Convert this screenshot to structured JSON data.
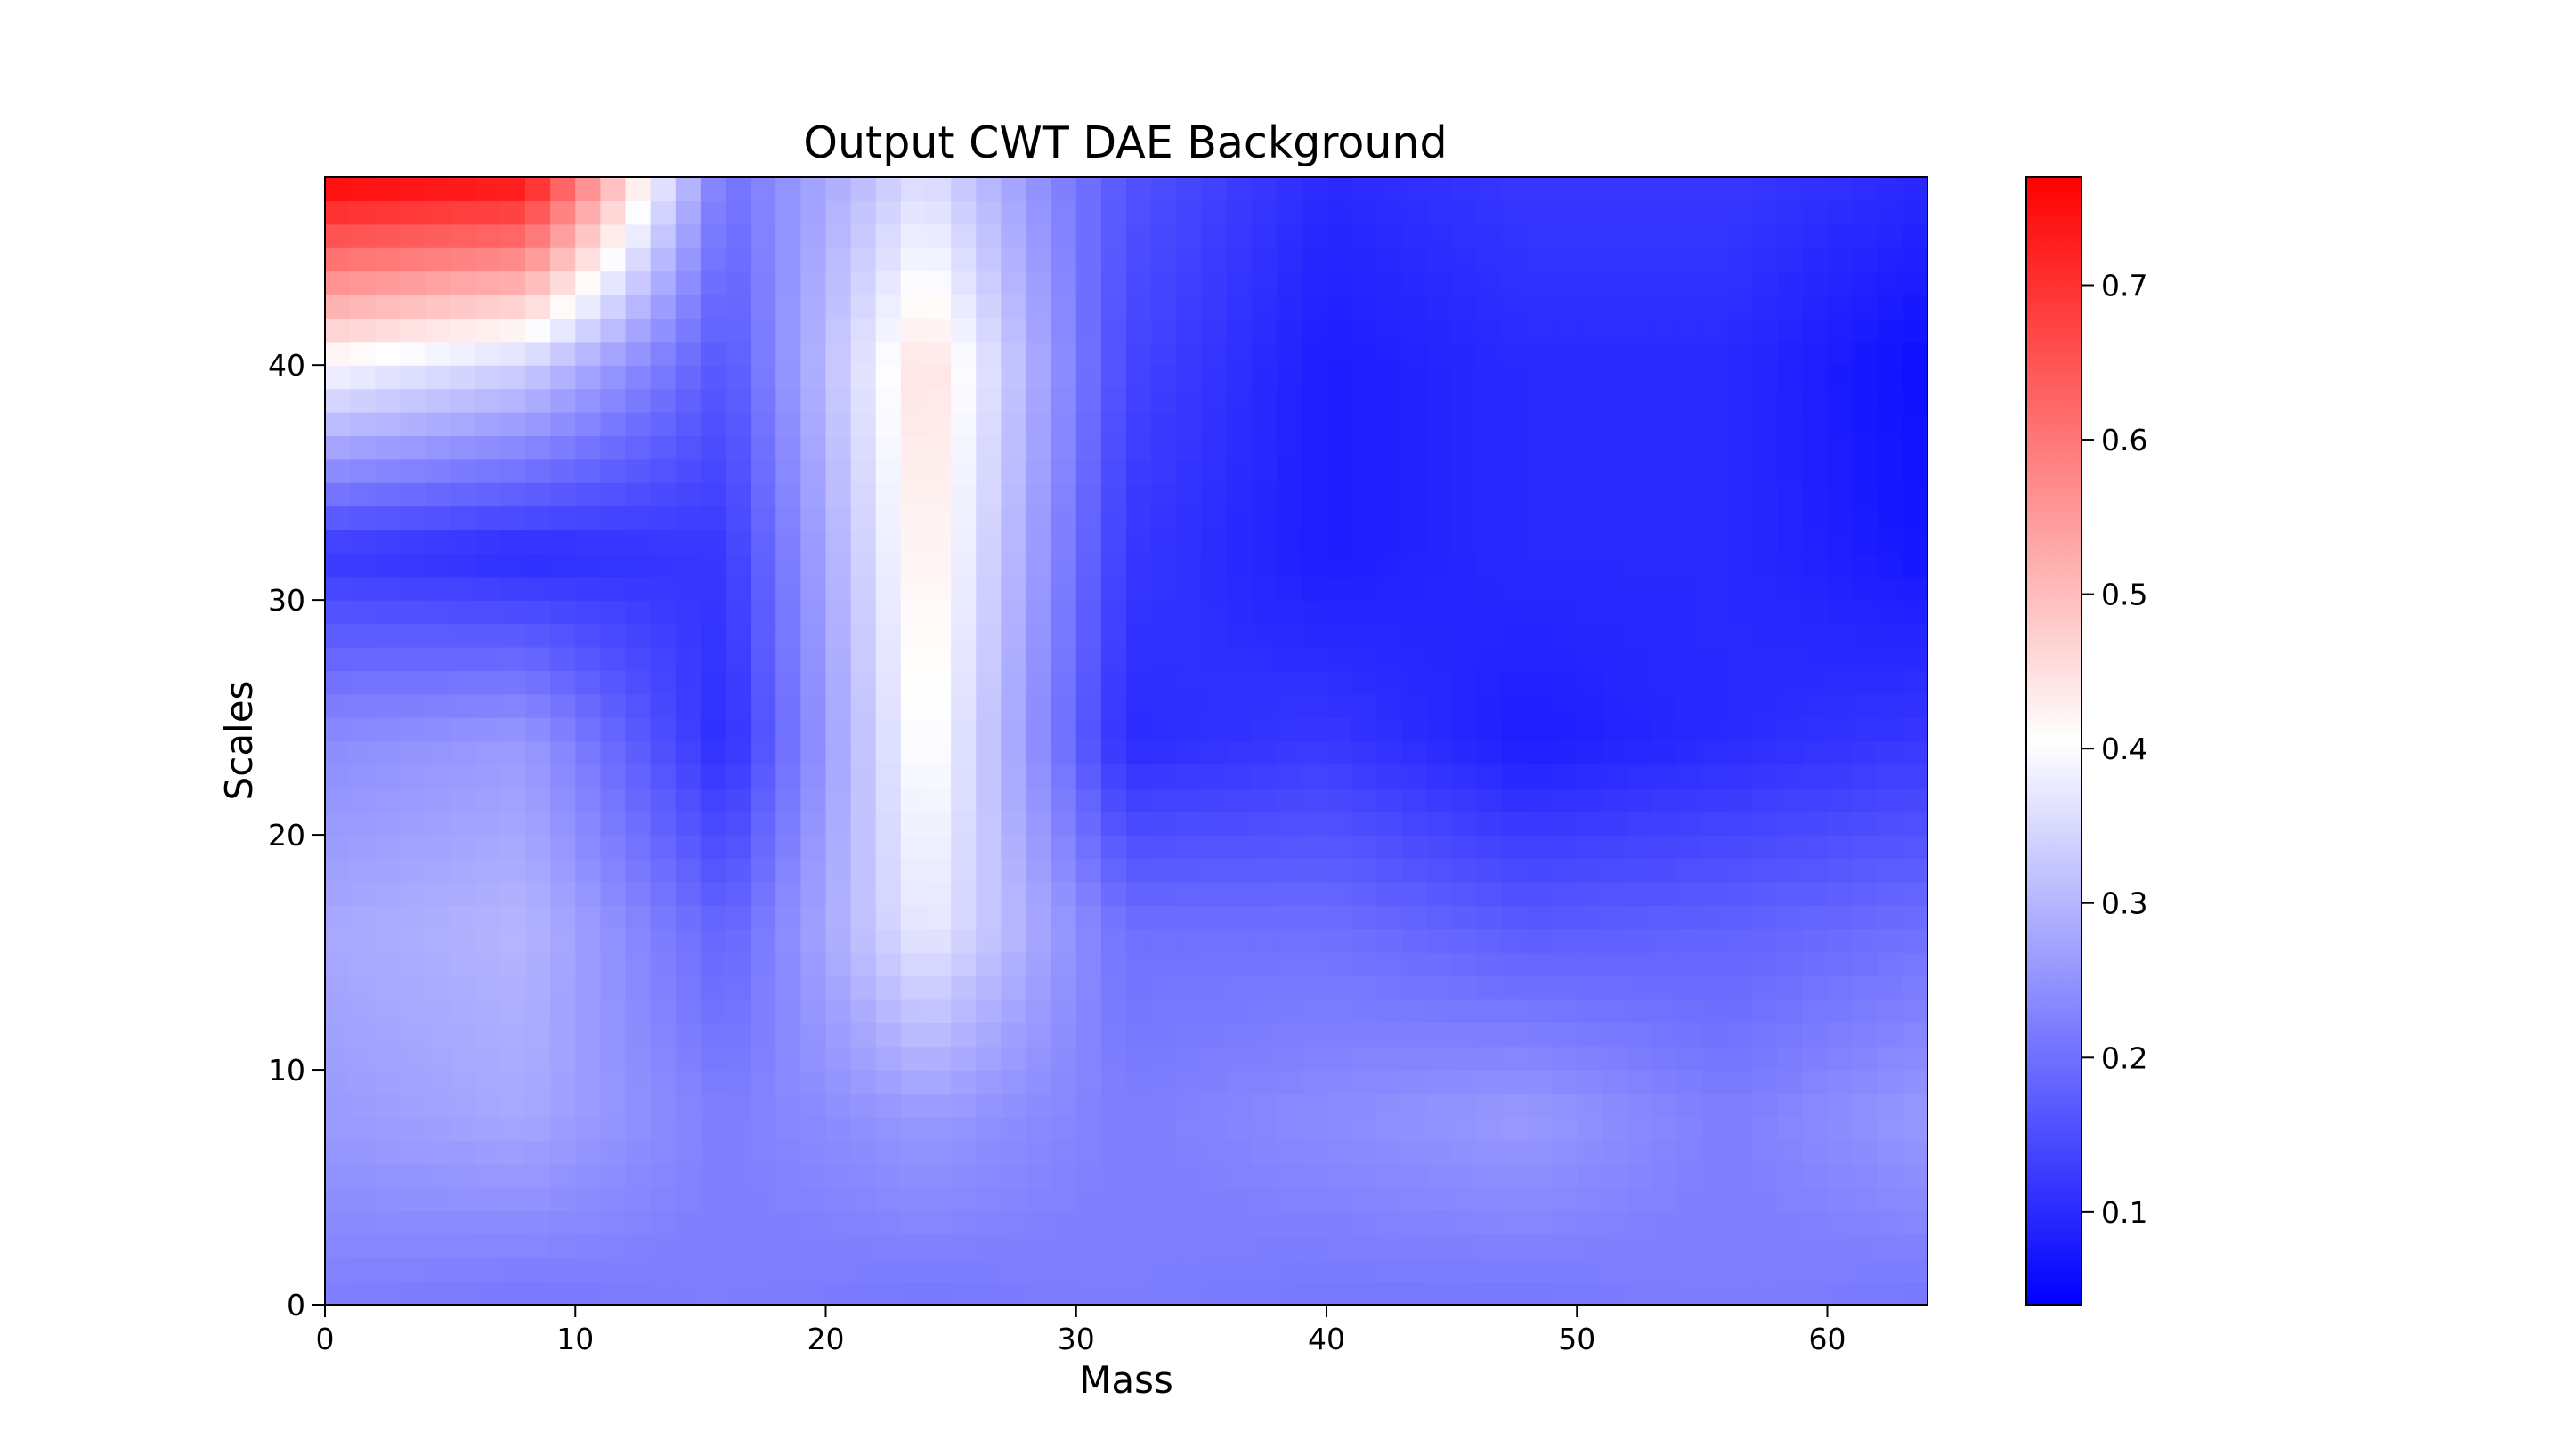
{
  "chart_data": {
    "type": "heatmap",
    "title": "Output CWT DAE Background",
    "xlabel": "Mass",
    "ylabel": "Scales",
    "xlim": [
      0,
      64
    ],
    "ylim": [
      0,
      48
    ],
    "xticks": [
      0,
      10,
      20,
      30,
      40,
      50,
      60
    ],
    "yticks": [
      0,
      10,
      20,
      30,
      40
    ],
    "colorbar": {
      "range": [
        0.04,
        0.77
      ],
      "ticks": [
        0.1,
        0.2,
        0.3,
        0.4,
        0.5,
        0.6,
        0.7
      ],
      "tick_labels": [
        "0.1",
        "0.2",
        "0.3",
        "0.4",
        "0.5",
        "0.6",
        "0.7"
      ],
      "colormap": "bwr",
      "colors": {
        "low": "#0000ff",
        "mid": "#ffffff",
        "high": "#ff0000"
      }
    },
    "grid": false,
    "value_grid": {
      "x": [
        0,
        8,
        16,
        24,
        32,
        40,
        48,
        56,
        64
      ],
      "y": [
        0,
        8,
        16,
        24,
        32,
        40,
        48
      ],
      "z": [
        [
          0.22,
          0.21,
          0.22,
          0.21,
          0.22,
          0.21,
          0.21,
          0.22,
          0.21
        ],
        [
          0.26,
          0.28,
          0.22,
          0.26,
          0.22,
          0.24,
          0.26,
          0.22,
          0.26
        ],
        [
          0.28,
          0.3,
          0.18,
          0.38,
          0.2,
          0.2,
          0.17,
          0.18,
          0.2
        ],
        [
          0.24,
          0.26,
          0.1,
          0.42,
          0.1,
          0.12,
          0.08,
          0.1,
          0.12
        ],
        [
          0.12,
          0.1,
          0.12,
          0.44,
          0.12,
          0.08,
          0.1,
          0.1,
          0.07
        ],
        [
          0.4,
          0.34,
          0.16,
          0.46,
          0.14,
          0.08,
          0.1,
          0.1,
          0.06
        ],
        [
          0.77,
          0.75,
          0.2,
          0.36,
          0.16,
          0.1,
          0.12,
          0.12,
          0.1
        ]
      ]
    }
  }
}
